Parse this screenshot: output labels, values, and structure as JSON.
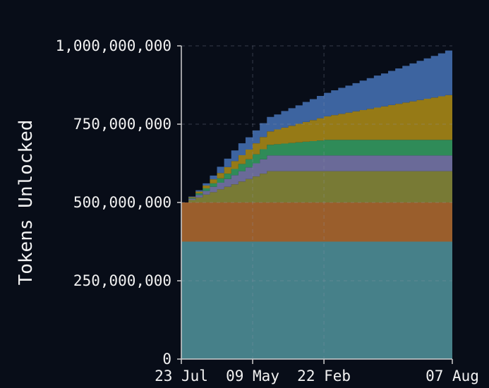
{
  "chart_data": {
    "type": "area",
    "stacked": true,
    "step": true,
    "ylabel": "Tokens Unlocked",
    "xlabel": "",
    "title": "",
    "ylim": [
      0,
      1000000000
    ],
    "y_ticks": [
      {
        "value": 0,
        "label": "0"
      },
      {
        "value": 250000000,
        "label": "250,000,000"
      },
      {
        "value": 500000000,
        "label": "500,000,000"
      },
      {
        "value": 750000000,
        "label": "750,000,000"
      },
      {
        "value": 1000000000,
        "label": "1,000,000,000"
      }
    ],
    "x_ticks": [
      {
        "value": 0,
        "label": "23 Jul"
      },
      {
        "value": 10,
        "label": "09 May"
      },
      {
        "value": 20,
        "label": "22 Feb"
      },
      {
        "value": 38,
        "label": "07 Aug"
      }
    ],
    "xlim": [
      0,
      38
    ],
    "x": [
      0,
      1,
      2,
      3,
      4,
      5,
      6,
      7,
      8,
      9,
      10,
      11,
      12,
      13,
      14,
      15,
      16,
      17,
      18,
      19,
      20,
      21,
      22,
      23,
      24,
      25,
      26,
      27,
      28,
      29,
      30,
      31,
      32,
      33,
      34,
      35,
      36,
      37,
      38
    ],
    "grid": true,
    "series": [
      {
        "color": "#468089",
        "values": [
          375000000,
          375000000,
          375000000,
          375000000,
          375000000,
          375000000,
          375000000,
          375000000,
          375000000,
          375000000,
          375000000,
          375000000,
          375000000,
          375000000,
          375000000,
          375000000,
          375000000,
          375000000,
          375000000,
          375000000,
          375000000,
          375000000,
          375000000,
          375000000,
          375000000,
          375000000,
          375000000,
          375000000,
          375000000,
          375000000,
          375000000,
          375000000,
          375000000,
          375000000,
          375000000,
          375000000,
          375000000,
          375000000,
          375000000
        ]
      },
      {
        "color": "#9a5e2c",
        "values": [
          125000000,
          125000000,
          125000000,
          125000000,
          125000000,
          125000000,
          125000000,
          125000000,
          125000000,
          125000000,
          125000000,
          125000000,
          125000000,
          125000000,
          125000000,
          125000000,
          125000000,
          125000000,
          125000000,
          125000000,
          125000000,
          125000000,
          125000000,
          125000000,
          125000000,
          125000000,
          125000000,
          125000000,
          125000000,
          125000000,
          125000000,
          125000000,
          125000000,
          125000000,
          125000000,
          125000000,
          125000000,
          125000000,
          125000000
        ]
      },
      {
        "color": "#787a35",
        "values": [
          0,
          8000000,
          16000000,
          25000000,
          33000000,
          42000000,
          50000000,
          58000000,
          67000000,
          75000000,
          83000000,
          92000000,
          100000000,
          100000000,
          100000000,
          100000000,
          100000000,
          100000000,
          100000000,
          100000000,
          100000000,
          100000000,
          100000000,
          100000000,
          100000000,
          100000000,
          100000000,
          100000000,
          100000000,
          100000000,
          100000000,
          100000000,
          100000000,
          100000000,
          100000000,
          100000000,
          100000000,
          100000000,
          100000000
        ]
      },
      {
        "color": "#6a6a98",
        "values": [
          0,
          4000000,
          8000000,
          12000000,
          17000000,
          21000000,
          25000000,
          29000000,
          33000000,
          37000000,
          42000000,
          46000000,
          50000000,
          50000000,
          50000000,
          50000000,
          50000000,
          50000000,
          50000000,
          50000000,
          50000000,
          50000000,
          50000000,
          50000000,
          50000000,
          50000000,
          50000000,
          50000000,
          50000000,
          50000000,
          50000000,
          50000000,
          50000000,
          50000000,
          50000000,
          50000000,
          50000000,
          50000000,
          50000000
        ]
      },
      {
        "color": "#2f8b58",
        "values": [
          0,
          2000000,
          5000000,
          8000000,
          11000000,
          14000000,
          17000000,
          20000000,
          23000000,
          26000000,
          29000000,
          32000000,
          34000000,
          36000000,
          38000000,
          40000000,
          42000000,
          44000000,
          46000000,
          48000000,
          50000000,
          50000000,
          50000000,
          50000000,
          50000000,
          50000000,
          50000000,
          50000000,
          50000000,
          50000000,
          50000000,
          50000000,
          50000000,
          50000000,
          50000000,
          50000000,
          50000000,
          50000000,
          50000000
        ]
      },
      {
        "color": "#967a16",
        "values": [
          0,
          3000000,
          6000000,
          9000000,
          13000000,
          17000000,
          21000000,
          25000000,
          28000000,
          31000000,
          35000000,
          39000000,
          43000000,
          47000000,
          51000000,
          55000000,
          59000000,
          63000000,
          67000000,
          71000000,
          75000000,
          79000000,
          83000000,
          87000000,
          91000000,
          95000000,
          99000000,
          103000000,
          107000000,
          111000000,
          115000000,
          119000000,
          123000000,
          127000000,
          131000000,
          135000000,
          139000000,
          143000000,
          150000000
        ]
      },
      {
        "color": "#3d64a0",
        "values": [
          0,
          2000000,
          4000000,
          7000000,
          12000000,
          20000000,
          27000000,
          34000000,
          38000000,
          39000000,
          41000000,
          44000000,
          46000000,
          48000000,
          53000000,
          56000000,
          59000000,
          64000000,
          67000000,
          71000000,
          75000000,
          79000000,
          83000000,
          86000000,
          90000000,
          94000000,
          98000000,
          102000000,
          105000000,
          109000000,
          113000000,
          117000000,
          121000000,
          125000000,
          129000000,
          133000000,
          137000000,
          142000000,
          150000000
        ]
      }
    ]
  }
}
